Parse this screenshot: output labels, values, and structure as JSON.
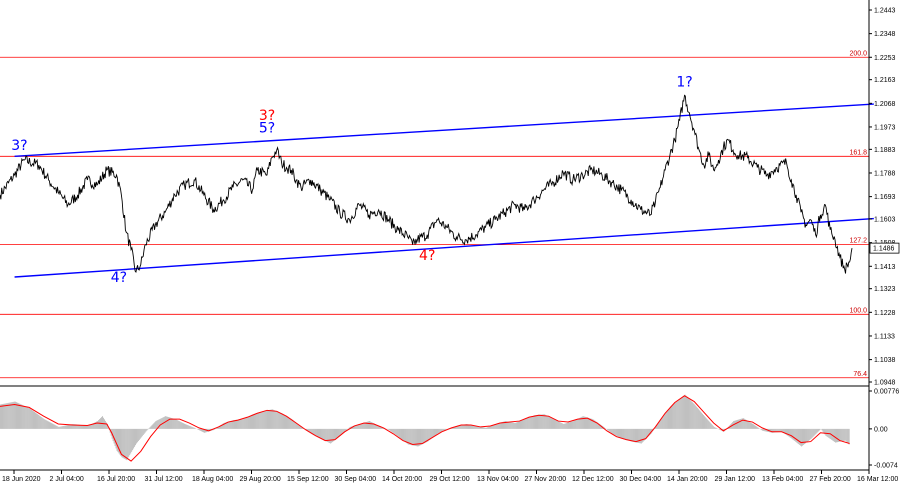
{
  "chart_data": {
    "type": "line",
    "price_axis": {
      "ticks": [
        "1.2443",
        "1.2348",
        "1.2253",
        "1.2163",
        "1.2068",
        "1.1973",
        "1.1883",
        "1.1788",
        "1.1693",
        "1.1603",
        "1.1508",
        "1.1413",
        "1.1323",
        "1.1228",
        "1.1133",
        "1.1038",
        "1.0948"
      ],
      "ylim": [
        1.0948,
        1.2443
      ],
      "current_price": "1.1486"
    },
    "time_axis": {
      "ticks": [
        "18 Jun 2020",
        "2 Jul 04:00",
        "16 Jul 20:00",
        "31 Jul 12:00",
        "18 Aug 04:00",
        "29 Aug 20:00",
        "15 Sep 12:00",
        "30 Sep 04:00",
        "14 Oct 20:00",
        "29 Oct 12:00",
        "13 Nov 04:00",
        "27 Nov 20:00",
        "12 Dec 12:00",
        "30 Dec 04:00",
        "14 Jan 20:00",
        "29 Jan 12:00",
        "13 Feb 04:00",
        "27 Feb 20:00",
        "16 Mar 12:00"
      ]
    },
    "price_series": [
      [
        0,
        1.17
      ],
      [
        3,
        1.178
      ],
      [
        5,
        1.184
      ],
      [
        8,
        1.182
      ],
      [
        10,
        1.176
      ],
      [
        12,
        1.171
      ],
      [
        14,
        1.166
      ],
      [
        16,
        1.17
      ],
      [
        18,
        1.176
      ],
      [
        20,
        1.174
      ],
      [
        22,
        1.18
      ],
      [
        24,
        1.178
      ],
      [
        25,
        1.17
      ],
      [
        26,
        1.155
      ],
      [
        27,
        1.148
      ],
      [
        28,
        1.139
      ],
      [
        29,
        1.142
      ],
      [
        30,
        1.15
      ],
      [
        32,
        1.158
      ],
      [
        34,
        1.163
      ],
      [
        36,
        1.17
      ],
      [
        38,
        1.174
      ],
      [
        40,
        1.176
      ],
      [
        42,
        1.17
      ],
      [
        44,
        1.164
      ],
      [
        46,
        1.168
      ],
      [
        48,
        1.173
      ],
      [
        50,
        1.176
      ],
      [
        52,
        1.172
      ],
      [
        53,
        1.18
      ],
      [
        55,
        1.178
      ],
      [
        56,
        1.185
      ],
      [
        57,
        1.188
      ],
      [
        58,
        1.183
      ],
      [
        59,
        1.181
      ],
      [
        60,
        1.18
      ],
      [
        61,
        1.176
      ],
      [
        62,
        1.173
      ],
      [
        64,
        1.176
      ],
      [
        66,
        1.172
      ],
      [
        68,
        1.168
      ],
      [
        70,
        1.163
      ],
      [
        72,
        1.16
      ],
      [
        74,
        1.166
      ],
      [
        76,
        1.162
      ],
      [
        78,
        1.164
      ],
      [
        80,
        1.16
      ],
      [
        82,
        1.156
      ],
      [
        84,
        1.153
      ],
      [
        85,
        1.15
      ],
      [
        86,
        1.152
      ],
      [
        88,
        1.154
      ],
      [
        90,
        1.16
      ],
      [
        92,
        1.157
      ],
      [
        94,
        1.153
      ],
      [
        96,
        1.152
      ],
      [
        98,
        1.154
      ],
      [
        100,
        1.157
      ],
      [
        102,
        1.16
      ],
      [
        104,
        1.163
      ],
      [
        106,
        1.166
      ],
      [
        108,
        1.164
      ],
      [
        110,
        1.168
      ],
      [
        112,
        1.172
      ],
      [
        114,
        1.175
      ],
      [
        116,
        1.179
      ],
      [
        118,
        1.176
      ],
      [
        120,
        1.178
      ],
      [
        122,
        1.18
      ],
      [
        124,
        1.178
      ],
      [
        126,
        1.175
      ],
      [
        128,
        1.172
      ],
      [
        130,
        1.168
      ],
      [
        132,
        1.164
      ],
      [
        134,
        1.162
      ],
      [
        135,
        1.167
      ],
      [
        136,
        1.173
      ],
      [
        137,
        1.18
      ],
      [
        138,
        1.186
      ],
      [
        139,
        1.192
      ],
      [
        140,
        1.2
      ],
      [
        141,
        1.21
      ],
      [
        142,
        1.203
      ],
      [
        143,
        1.196
      ],
      [
        144,
        1.188
      ],
      [
        145,
        1.182
      ],
      [
        146,
        1.186
      ],
      [
        147,
        1.18
      ],
      [
        148,
        1.184
      ],
      [
        149,
        1.189
      ],
      [
        150,
        1.192
      ],
      [
        151,
        1.188
      ],
      [
        152,
        1.186
      ],
      [
        154,
        1.185
      ],
      [
        156,
        1.181
      ],
      [
        158,
        1.178
      ],
      [
        160,
        1.181
      ],
      [
        162,
        1.183
      ],
      [
        163,
        1.176
      ],
      [
        164,
        1.17
      ],
      [
        165,
        1.163
      ],
      [
        166,
        1.158
      ],
      [
        167,
        1.16
      ],
      [
        168,
        1.154
      ],
      [
        169,
        1.162
      ],
      [
        170,
        1.166
      ],
      [
        171,
        1.156
      ],
      [
        172,
        1.152
      ],
      [
        173,
        1.145
      ],
      [
        174,
        1.14
      ],
      [
        175,
        1.143
      ],
      [
        175.5,
        1.1486
      ]
    ],
    "channel_lines": [
      {
        "from": [
          3,
          1.1855
        ],
        "to": [
          180,
          1.2065
        ]
      },
      {
        "from": [
          3,
          1.137
        ],
        "to": [
          180,
          1.1605
        ]
      }
    ],
    "fib_levels": [
      {
        "label": "200.0",
        "value": 1.2253
      },
      {
        "label": "161.8",
        "value": 1.1855
      },
      {
        "label": "127.2",
        "value": 1.15
      },
      {
        "label": "100.0",
        "value": 1.122
      },
      {
        "label": "76.4",
        "value": 1.0965
      }
    ],
    "wave_labels": [
      {
        "label": "3?",
        "t": 4,
        "price": 1.188,
        "color": "#0000ff"
      },
      {
        "label": "4?",
        "t": 24.5,
        "price": 1.135,
        "color": "#0000ff"
      },
      {
        "label": "3?",
        "t": 55,
        "price": 1.2,
        "color": "#ff0000"
      },
      {
        "label": "5?",
        "t": 55,
        "price": 1.195,
        "color": "#0000ff"
      },
      {
        "label": "4?",
        "t": 88,
        "price": 1.1438,
        "color": "#ff0000"
      },
      {
        "label": "1?",
        "t": 141,
        "price": 1.2135,
        "color": "#0000ff"
      }
    ],
    "oscillator": {
      "ticks": [
        "0.00776",
        "0.00",
        "-0.0074"
      ],
      "ylim": [
        -0.0074,
        0.00776
      ],
      "histogram": [
        [
          0,
          0.005
        ],
        [
          3,
          0.0056
        ],
        [
          6,
          0.0042
        ],
        [
          9,
          0.002
        ],
        [
          12,
          0.0004
        ],
        [
          15,
          0.001
        ],
        [
          18,
          0.0006
        ],
        [
          20,
          0.0016
        ],
        [
          21,
          0.0026
        ],
        [
          22,
          0.001
        ],
        [
          23,
          -0.002
        ],
        [
          24,
          -0.0045
        ],
        [
          25,
          -0.0058
        ],
        [
          26,
          -0.0064
        ],
        [
          28,
          -0.003
        ],
        [
          30,
          -0.0005
        ],
        [
          32,
          0.0016
        ],
        [
          34,
          0.0026
        ],
        [
          36,
          0.002
        ],
        [
          38,
          0.001
        ],
        [
          40,
          0.0002
        ],
        [
          42,
          -0.0008
        ],
        [
          44,
          -0.0002
        ],
        [
          46,
          0.0012
        ],
        [
          48,
          0.0018
        ],
        [
          50,
          0.002
        ],
        [
          52,
          0.003
        ],
        [
          54,
          0.0036
        ],
        [
          56,
          0.004
        ],
        [
          58,
          0.0032
        ],
        [
          60,
          0.002
        ],
        [
          62,
          0.0004
        ],
        [
          64,
          -0.001
        ],
        [
          66,
          -0.002
        ],
        [
          68,
          -0.003
        ],
        [
          70,
          -0.0014
        ],
        [
          72,
          0.0004
        ],
        [
          74,
          0.001
        ],
        [
          76,
          0.0016
        ],
        [
          78,
          0.0006
        ],
        [
          80,
          -0.0002
        ],
        [
          82,
          -0.0016
        ],
        [
          84,
          -0.0032
        ],
        [
          86,
          -0.0036
        ],
        [
          88,
          -0.0026
        ],
        [
          90,
          -0.001
        ],
        [
          92,
          0.0
        ],
        [
          94,
          0.0006
        ],
        [
          96,
          0.001
        ],
        [
          98,
          0.0006
        ],
        [
          100,
          0.0002
        ],
        [
          102,
          0.001
        ],
        [
          104,
          0.0016
        ],
        [
          106,
          0.0012
        ],
        [
          108,
          0.002
        ],
        [
          110,
          0.0028
        ],
        [
          112,
          0.003
        ],
        [
          114,
          0.002
        ],
        [
          116,
          0.001
        ],
        [
          118,
          0.0016
        ],
        [
          120,
          0.0026
        ],
        [
          122,
          0.002
        ],
        [
          124,
          0.0006
        ],
        [
          126,
          -0.001
        ],
        [
          128,
          -0.002
        ],
        [
          130,
          -0.0026
        ],
        [
          132,
          -0.003
        ],
        [
          134,
          -0.001
        ],
        [
          136,
          0.002
        ],
        [
          138,
          0.0046
        ],
        [
          140,
          0.0062
        ],
        [
          141,
          0.007
        ],
        [
          143,
          0.005
        ],
        [
          145,
          0.0026
        ],
        [
          147,
          0.0004
        ],
        [
          149,
          -0.0006
        ],
        [
          151,
          0.0016
        ],
        [
          153,
          0.0022
        ],
        [
          155,
          0.001
        ],
        [
          157,
          -0.0004
        ],
        [
          159,
          -0.0008
        ],
        [
          161,
          -0.0006
        ],
        [
          163,
          -0.002
        ],
        [
          165,
          -0.0036
        ],
        [
          167,
          -0.002
        ],
        [
          169,
          0.0
        ],
        [
          170,
          -0.0014
        ],
        [
          172,
          -0.0028
        ],
        [
          174,
          -0.0024
        ],
        [
          175,
          -0.0034
        ]
      ],
      "signal": [
        [
          0,
          0.0046
        ],
        [
          3,
          0.005
        ],
        [
          6,
          0.0044
        ],
        [
          9,
          0.0026
        ],
        [
          12,
          0.001
        ],
        [
          15,
          0.0008
        ],
        [
          18,
          0.0007
        ],
        [
          20,
          0.0012
        ],
        [
          22,
          0.001
        ],
        [
          23,
          -0.0008
        ],
        [
          24,
          -0.003
        ],
        [
          25,
          -0.0052
        ],
        [
          27,
          -0.0066
        ],
        [
          29,
          -0.0046
        ],
        [
          31,
          -0.0016
        ],
        [
          33,
          0.0008
        ],
        [
          35,
          0.002
        ],
        [
          37,
          0.002
        ],
        [
          39,
          0.0012
        ],
        [
          41,
          0.0002
        ],
        [
          43,
          -0.0004
        ],
        [
          45,
          0.0004
        ],
        [
          47,
          0.0014
        ],
        [
          49,
          0.0018
        ],
        [
          51,
          0.0024
        ],
        [
          53,
          0.0032
        ],
        [
          55,
          0.0038
        ],
        [
          57,
          0.0036
        ],
        [
          59,
          0.0026
        ],
        [
          61,
          0.0012
        ],
        [
          63,
          -0.0002
        ],
        [
          65,
          -0.0014
        ],
        [
          67,
          -0.0024
        ],
        [
          69,
          -0.0022
        ],
        [
          71,
          -0.0006
        ],
        [
          73,
          0.0006
        ],
        [
          75,
          0.0012
        ],
        [
          77,
          0.001
        ],
        [
          79,
          0.0002
        ],
        [
          81,
          -0.001
        ],
        [
          83,
          -0.0024
        ],
        [
          85,
          -0.0032
        ],
        [
          87,
          -0.003
        ],
        [
          89,
          -0.0018
        ],
        [
          91,
          -0.0006
        ],
        [
          93,
          0.0002
        ],
        [
          95,
          0.0008
        ],
        [
          97,
          0.0008
        ],
        [
          99,
          0.0004
        ],
        [
          101,
          0.0006
        ],
        [
          103,
          0.0012
        ],
        [
          105,
          0.0014
        ],
        [
          107,
          0.0016
        ],
        [
          109,
          0.0024
        ],
        [
          111,
          0.0028
        ],
        [
          113,
          0.0026
        ],
        [
          115,
          0.0016
        ],
        [
          117,
          0.0014
        ],
        [
          119,
          0.002
        ],
        [
          121,
          0.0022
        ],
        [
          123,
          0.0012
        ],
        [
          125,
          -0.0004
        ],
        [
          127,
          -0.0016
        ],
        [
          129,
          -0.0022
        ],
        [
          131,
          -0.0026
        ],
        [
          133,
          -0.002
        ],
        [
          135,
          0.0004
        ],
        [
          137,
          0.0032
        ],
        [
          139,
          0.0054
        ],
        [
          141,
          0.0068
        ],
        [
          143,
          0.0056
        ],
        [
          145,
          0.0034
        ],
        [
          147,
          0.0012
        ],
        [
          149,
          -0.0004
        ],
        [
          151,
          0.0008
        ],
        [
          153,
          0.0018
        ],
        [
          155,
          0.0014
        ],
        [
          157,
          0.0002
        ],
        [
          159,
          -0.0006
        ],
        [
          161,
          -0.0006
        ],
        [
          163,
          -0.0014
        ],
        [
          165,
          -0.0028
        ],
        [
          167,
          -0.0026
        ],
        [
          169,
          -0.0008
        ],
        [
          171,
          -0.001
        ],
        [
          173,
          -0.0024
        ],
        [
          175,
          -0.003
        ]
      ]
    },
    "colors": {
      "price": "#000000",
      "channel": "#0000ff",
      "fib": "#ff0000",
      "histogram": "#c0c0c0",
      "signal": "#ff0000",
      "axis": "#000000",
      "price_tag_bg": "#ffffff"
    }
  }
}
